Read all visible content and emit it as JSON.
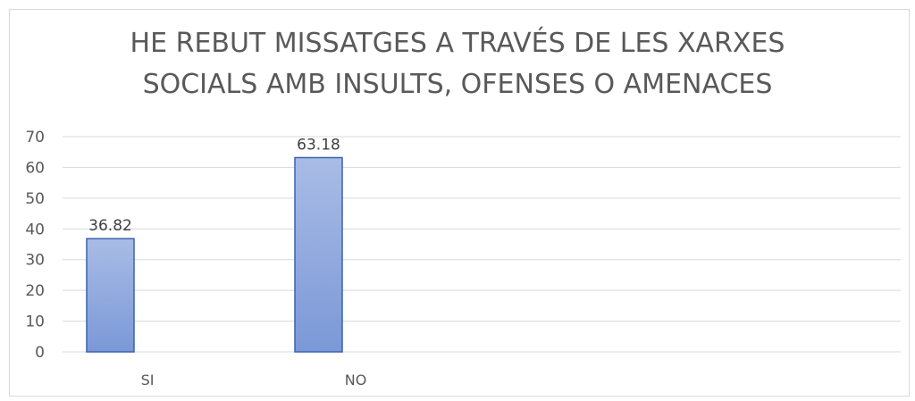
{
  "chart_data": {
    "type": "bar",
    "title_lines": [
      "HE REBUT MISSATGES A TRAVÉS DE LES XARXES",
      "SOCIALS AMB INSULTS, OFENSES O AMENACES"
    ],
    "categories": [
      "SI",
      "NO"
    ],
    "values": [
      36.82,
      63.18
    ],
    "data_labels": [
      "36.82",
      "63.18"
    ],
    "y_ticks": [
      0,
      10,
      20,
      30,
      40,
      50,
      60,
      70
    ],
    "ylim": [
      0,
      70
    ],
    "grid": true,
    "legend": "none",
    "colors": {
      "bar_top": "#a9bce6",
      "bar_bottom": "#7b98d7",
      "bar_stroke": "#3a62b0",
      "gridline": "#d9d9d9",
      "text": "#595959"
    }
  }
}
